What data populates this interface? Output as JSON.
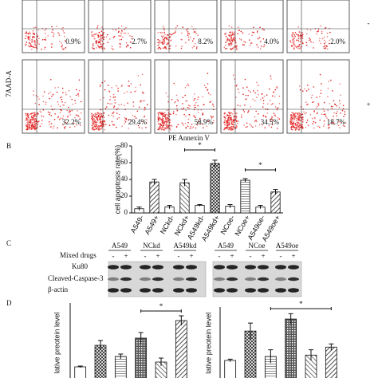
{
  "panel_labels": [
    "B",
    "C",
    "D"
  ],
  "flow": {
    "y_label": "7AAD-A",
    "x_label": "PE Annexin V",
    "row_labels": [
      "-",
      "+"
    ],
    "percent_labels": [
      [
        "0.9%",
        "2.7%",
        "8.2%",
        "4.0%",
        "2.0%"
      ],
      [
        "32.2%",
        "29.4%",
        "58.9%",
        "34.5%",
        "18.7%"
      ]
    ]
  },
  "apoptosis": {
    "type": "bar",
    "y_label": "cell apoptosis rate(%)",
    "categories": [
      "A549-",
      "A549+",
      "NCkd-",
      "NCkd+",
      "A549kd-",
      "A549kd+",
      "NCoe-",
      "NCoe+",
      "A549oe-",
      "A549oe+"
    ],
    "values": [
      5,
      37,
      7,
      36,
      9,
      59,
      8,
      39,
      7,
      25
    ],
    "errors": [
      2,
      3,
      2,
      4,
      1,
      4,
      2,
      2,
      2,
      3
    ],
    "ylim": [
      0,
      80
    ],
    "yticks": [
      0,
      20,
      40,
      60,
      80
    ],
    "significance": [
      "*",
      "*"
    ]
  },
  "blot": {
    "groups": [
      "A549",
      "NCkd",
      "A549kd",
      "A549",
      "NCoe",
      "A549oe"
    ],
    "treatment": "Mixed drugs",
    "signs": [
      "-",
      "+"
    ],
    "proteins": [
      "Ku80",
      "Cleaved-Caspase-3",
      "β-actin"
    ]
  },
  "protein_levels": [
    {
      "type": "bar",
      "y_label": "lative preotein level",
      "values": [
        1,
        2.35,
        1.65,
        2.8,
        1.3,
        3.9
      ],
      "errors": [
        0.05,
        0.3,
        0.15,
        0.35,
        0.25,
        0.3
      ],
      "ylim": [
        0,
        5
      ],
      "significance": "*"
    },
    {
      "type": "bar",
      "y_label": "lative preotein level",
      "values": [
        1,
        2.1,
        1.15,
        2.55,
        1.2,
        1.5
      ],
      "errors": [
        0.05,
        0.3,
        0.25,
        0.2,
        0.2,
        0.12
      ],
      "ylim": [
        0,
        3
      ],
      "significance": "*"
    }
  ]
}
